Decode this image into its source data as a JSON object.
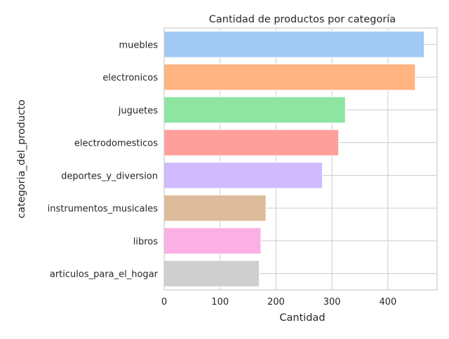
{
  "chart_data": {
    "type": "bar",
    "orientation": "horizontal",
    "title": "Cantidad de productos por categoría",
    "xlabel": "Cantidad",
    "ylabel": "categoria_del_producto",
    "categories": [
      "muebles",
      "electronicos",
      "juguetes",
      "electrodomesticos",
      "deportes_y_diversion",
      "instrumentos_musicales",
      "libros",
      "articulos_para_el_hogar"
    ],
    "values": [
      465,
      449,
      324,
      312,
      283,
      182,
      173,
      170
    ],
    "colors": [
      "#a1c9f4",
      "#ffb482",
      "#8de5a1",
      "#ff9f9b",
      "#d0bbff",
      "#debb9b",
      "#fab0e4",
      "#cfcfcf"
    ],
    "xlim": [
      0,
      488
    ],
    "xticks": [
      "0",
      "100",
      "200",
      "300",
      "400"
    ],
    "grid": true,
    "legend": "none"
  }
}
